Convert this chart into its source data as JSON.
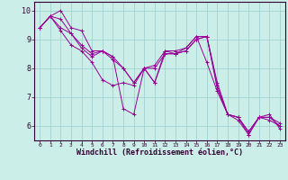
{
  "background_color": "#cceee8",
  "grid_color": "#99cccc",
  "line_color": "#990099",
  "xlim": [
    -0.5,
    23.5
  ],
  "ylim": [
    5.5,
    10.3
  ],
  "yticks": [
    6,
    7,
    8,
    9,
    10
  ],
  "xticks": [
    0,
    1,
    2,
    3,
    4,
    5,
    6,
    7,
    8,
    9,
    10,
    11,
    12,
    13,
    14,
    15,
    16,
    17,
    18,
    19,
    20,
    21,
    22,
    23
  ],
  "xlabel": "Windchill (Refroidissement éolien,°C)",
  "series": [
    [
      9.4,
      9.8,
      9.3,
      8.8,
      8.6,
      8.2,
      7.6,
      7.4,
      7.5,
      7.4,
      8.0,
      8.1,
      8.6,
      8.6,
      8.7,
      9.1,
      8.2,
      7.2,
      6.4,
      6.2,
      5.7,
      6.3,
      6.2,
      6.0
    ],
    [
      9.4,
      9.8,
      9.4,
      9.2,
      8.7,
      8.4,
      8.6,
      8.3,
      8.0,
      7.5,
      8.0,
      8.0,
      8.5,
      8.5,
      8.6,
      9.0,
      9.1,
      7.5,
      6.4,
      6.3,
      5.8,
      6.3,
      6.3,
      6.1
    ],
    [
      9.4,
      9.8,
      10.0,
      9.4,
      9.3,
      8.6,
      8.6,
      8.4,
      6.6,
      6.4,
      8.0,
      7.5,
      8.6,
      8.5,
      8.7,
      9.1,
      9.1,
      7.3,
      6.4,
      6.3,
      5.7,
      6.3,
      6.4,
      5.9
    ],
    [
      9.4,
      9.8,
      9.7,
      9.2,
      8.8,
      8.5,
      8.6,
      8.4,
      8.0,
      7.5,
      8.0,
      7.5,
      8.5,
      8.5,
      8.6,
      9.0,
      9.1,
      7.4,
      6.4,
      6.3,
      5.8,
      6.3,
      6.3,
      6.0
    ]
  ]
}
